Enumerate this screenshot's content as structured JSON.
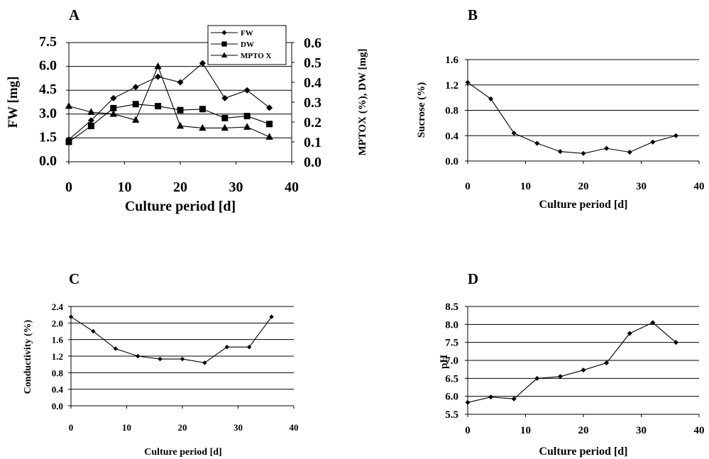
{
  "chart_data": [
    {
      "panel": "A",
      "type": "line",
      "xlabel": "Culture period [d]",
      "ylabel": "FW [mg]",
      "ylabel_right": "MPTOX (%), DW [mg]",
      "xlim": [
        0,
        40
      ],
      "ylim": [
        0,
        7.5
      ],
      "ylim_right": [
        0,
        0.6
      ],
      "xticks": [
        "0",
        "10",
        "20",
        "30",
        "40"
      ],
      "yticks": [
        "0.0",
        "1.5",
        "3.0",
        "4.5",
        "6.0",
        "7.5"
      ],
      "yticks_right": [
        "0.0",
        "0.1",
        "0.2",
        "0.3",
        "0.4",
        "0.5",
        "0.6"
      ],
      "grid": "horizontal",
      "legend_position": "top-right",
      "series": [
        {
          "name": "FW",
          "axis": "left",
          "marker": "diamond",
          "x": [
            0,
            4,
            8,
            12,
            16,
            20,
            24,
            28,
            32,
            36
          ],
          "values": [
            1.4,
            2.6,
            4.0,
            4.7,
            5.35,
            5.0,
            6.2,
            4.0,
            4.5,
            3.4
          ]
        },
        {
          "name": "DW",
          "axis": "right",
          "marker": "square",
          "x": [
            0,
            4,
            8,
            12,
            16,
            20,
            24,
            28,
            32,
            36
          ],
          "values": [
            0.1,
            0.18,
            0.27,
            0.29,
            0.28,
            0.26,
            0.265,
            0.22,
            0.23,
            0.19
          ]
        },
        {
          "name": "MPTO X",
          "axis": "right",
          "marker": "triangle",
          "x": [
            0,
            4,
            8,
            12,
            16,
            20,
            24,
            28,
            32,
            36
          ],
          "values": [
            0.28,
            0.25,
            0.24,
            0.21,
            0.48,
            0.18,
            0.17,
            0.17,
            0.175,
            0.125
          ]
        }
      ]
    },
    {
      "panel": "B",
      "type": "line",
      "xlabel": "Culture period [d]",
      "ylabel": "Sucrose (%)",
      "xlim": [
        0,
        40
      ],
      "ylim": [
        0,
        1.6
      ],
      "xticks": [
        "0",
        "10",
        "20",
        "30",
        "40"
      ],
      "yticks": [
        "0.0",
        "0.4",
        "0.8",
        "1.2",
        "1.6"
      ],
      "grid": "horizontal",
      "series": [
        {
          "marker": "diamond",
          "x": [
            0,
            4,
            8,
            12,
            16,
            20,
            24,
            28,
            32,
            36
          ],
          "values": [
            1.24,
            0.98,
            0.44,
            0.28,
            0.15,
            0.12,
            0.2,
            0.14,
            0.3,
            0.4
          ]
        }
      ]
    },
    {
      "panel": "C",
      "type": "line",
      "xlabel": "Culture period [d]",
      "ylabel": "Conductivity (%)",
      "xlim": [
        0,
        40
      ],
      "ylim": [
        0,
        2.4
      ],
      "xticks": [
        "0",
        "10",
        "20",
        "30",
        "40"
      ],
      "yticks": [
        "0.0",
        "0.4",
        "0.8",
        "1.2",
        "1.6",
        "2.0",
        "2.4"
      ],
      "grid": "horizontal",
      "series": [
        {
          "marker": "diamond",
          "x": [
            0,
            4,
            8,
            12,
            16,
            20,
            24,
            28,
            32,
            36
          ],
          "values": [
            2.15,
            1.8,
            1.38,
            1.2,
            1.13,
            1.13,
            1.04,
            1.42,
            1.42,
            2.15
          ]
        }
      ]
    },
    {
      "panel": "D",
      "type": "line",
      "xlabel": "Culture period [d]",
      "ylabel": "pH",
      "xlim": [
        0,
        40
      ],
      "ylim": [
        5.5,
        8.5
      ],
      "xticks": [
        "0",
        "10",
        "20",
        "30",
        "40"
      ],
      "yticks": [
        "5.5",
        "6.0",
        "6.5",
        "7.0",
        "7.5",
        "8.0",
        "8.5"
      ],
      "grid": "horizontal",
      "series": [
        {
          "marker": "diamond",
          "x": [
            0,
            4,
            8,
            12,
            16,
            20,
            24,
            28,
            32,
            36
          ],
          "values": [
            5.83,
            5.98,
            5.93,
            6.5,
            6.55,
            6.73,
            6.93,
            7.75,
            8.05,
            7.5
          ]
        }
      ]
    }
  ]
}
